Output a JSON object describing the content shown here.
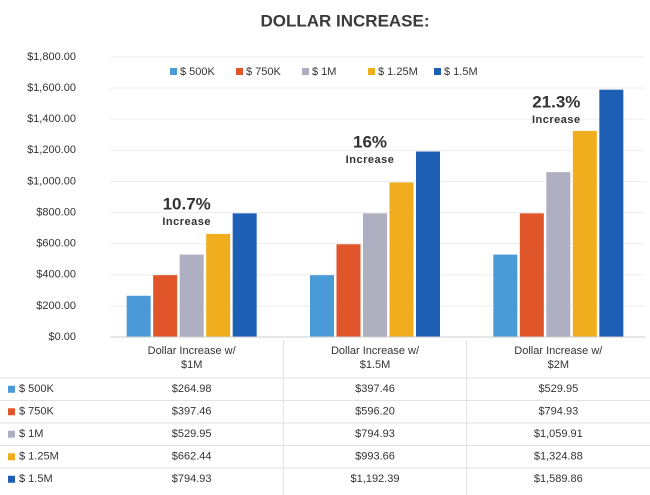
{
  "chart_data": {
    "type": "bar",
    "title": "DOLLAR INCREASE:",
    "categories": [
      "Dollar Increase w/ $1M",
      "Dollar Increase w/ $1.5M",
      "Dollar Increase w/ $2M"
    ],
    "series": [
      {
        "name": "$ 500K",
        "color": "#4a9ad8",
        "values": [
          264.98,
          397.46,
          529.95
        ],
        "value_labels": [
          "$264.98",
          "$397.46",
          "$529.95"
        ]
      },
      {
        "name": "$ 750K",
        "color": "#e0552a",
        "values": [
          397.46,
          596.2,
          794.93
        ],
        "value_labels": [
          "$397.46",
          "$596.20",
          "$794.93"
        ]
      },
      {
        "name": "$ 1M",
        "color": "#aeb0c2",
        "values": [
          529.95,
          794.93,
          1059.91
        ],
        "value_labels": [
          "$529.95",
          "$794.93",
          "$1,059.91"
        ]
      },
      {
        "name": "$ 1.25M",
        "color": "#f0ae1e",
        "values": [
          662.44,
          993.66,
          1324.88
        ],
        "value_labels": [
          "$662.44",
          "$993.66",
          "$1,324.88"
        ]
      },
      {
        "name": "$ 1.5M",
        "color": "#1c5fb4",
        "values": [
          794.93,
          1192.39,
          1589.86
        ],
        "value_labels": [
          "$794.93",
          "$1,192.39",
          "$1,589.86"
        ]
      }
    ],
    "annotations": [
      {
        "text": "10.7%",
        "subtext": "Increase"
      },
      {
        "text": "16%",
        "subtext": "Increase"
      },
      {
        "text": "21.3%",
        "subtext": "Increase"
      }
    ],
    "ylim": [
      0,
      1800
    ],
    "yticks": [
      {
        "value": 0,
        "label": "$0.00"
      },
      {
        "value": 200,
        "label": "$200.00"
      },
      {
        "value": 400,
        "label": "$400.00"
      },
      {
        "value": 600,
        "label": "$600.00"
      },
      {
        "value": 800,
        "label": "$800.00"
      },
      {
        "value": 1000,
        "label": "$1,000.00"
      },
      {
        "value": 1200,
        "label": "$1,200.00"
      },
      {
        "value": 1400,
        "label": "$1,400.00"
      },
      {
        "value": 1600,
        "label": "$1,600.00"
      },
      {
        "value": 1800,
        "label": "$1,800.00"
      }
    ],
    "grid": true,
    "legend": "top"
  }
}
